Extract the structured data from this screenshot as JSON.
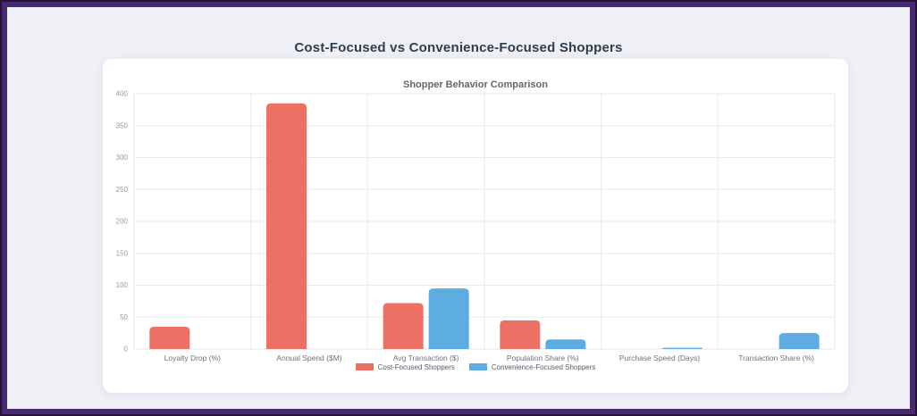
{
  "page": {
    "title": "Cost-Focused vs Convenience-Focused Shoppers"
  },
  "colors": {
    "frame_outer": "#241038",
    "frame": "#452a6f",
    "page_background": "#eef0f5",
    "card_background": "#ffffff",
    "title_text": "#2c3e50",
    "chart_title_text": "#666666",
    "axis_text": "#999999",
    "category_text": "#6b7280",
    "grid_line": "#e8eaee",
    "series_red": "#ec7063",
    "series_blue": "#5dade2"
  },
  "chart_data": {
    "type": "bar",
    "title": "Shopper Behavior Comparison",
    "categories": [
      "Loyalty Drop (%)",
      "Annual Spend ($M)",
      "Avg Transaction ($)",
      "Population Share (%)",
      "Purchase Speed (Days)",
      "Transaction Share (%)"
    ],
    "series": [
      {
        "name": "Cost-Focused Shoppers",
        "color": "#ec7063",
        "values": [
          35,
          385,
          72,
          45,
          0,
          0
        ]
      },
      {
        "name": "Convenience-Focused Shoppers",
        "color": "#5dade2",
        "values": [
          0,
          0,
          95,
          15,
          2,
          25
        ]
      }
    ],
    "xlabel": "",
    "ylabel": "",
    "ylim": [
      0,
      400
    ],
    "yticks": [
      0,
      50,
      100,
      150,
      200,
      250,
      300,
      350,
      400
    ],
    "grid": true,
    "legend_position": "bottom"
  }
}
